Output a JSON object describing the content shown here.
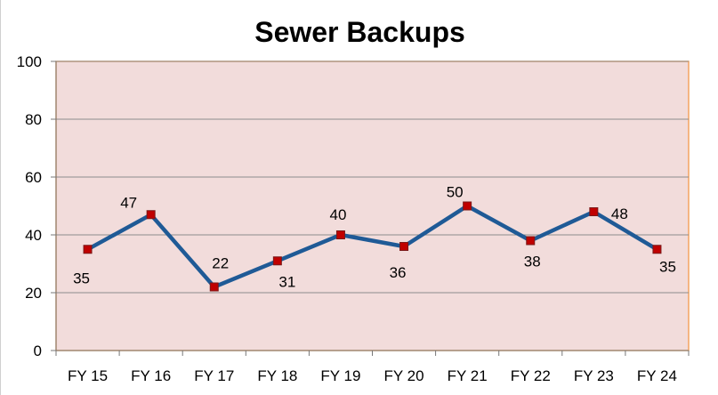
{
  "chart_data": {
    "type": "line",
    "title": "Sewer Backups",
    "xlabel": "",
    "ylabel": "",
    "categories": [
      "FY 15",
      "FY 16",
      "FY 17",
      "FY 18",
      "FY 19",
      "FY 20",
      "FY 21",
      "FY 22",
      "FY 23",
      "FY 24"
    ],
    "series": [
      {
        "values": [
          35,
          47,
          22,
          31,
          40,
          36,
          50,
          38,
          48,
          35
        ]
      }
    ],
    "ylim": [
      0,
      100
    ],
    "yticks": [
      "0",
      "20",
      "40",
      "60",
      "80",
      "100"
    ],
    "grid": true,
    "legend": "none",
    "data_labels": [
      "35",
      "47",
      "22",
      "31",
      "40",
      "36",
      "50",
      "38",
      "48",
      "35"
    ],
    "colors": {
      "plot_background": "#f2dcdb",
      "plot_border": "#f4a460",
      "line": "#1f5a96",
      "marker": "#c00000",
      "gridline": "#8c8c8c"
    }
  }
}
